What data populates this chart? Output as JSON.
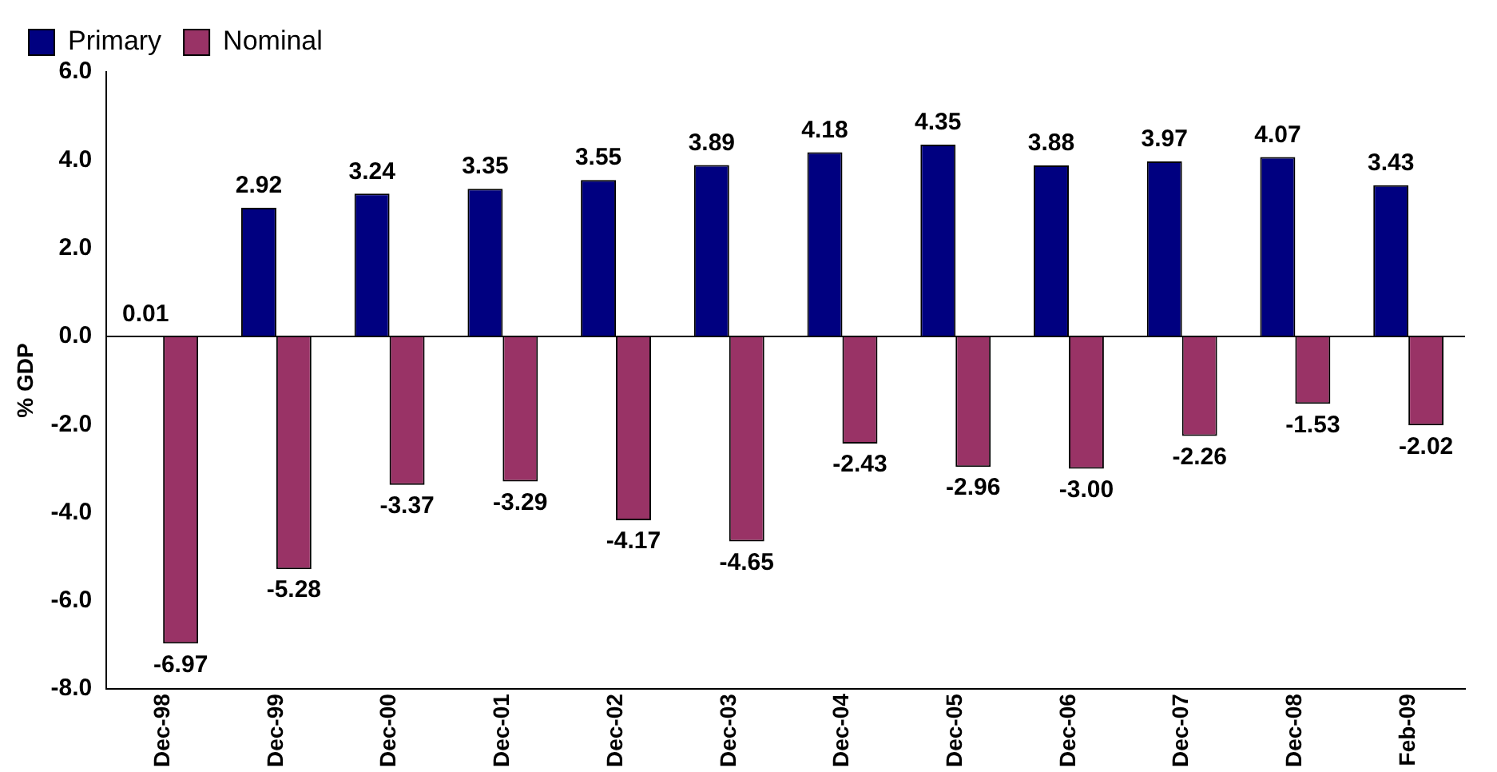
{
  "chart_data": {
    "type": "bar",
    "ylabel": "% GDP",
    "categories": [
      "Dec-98",
      "Dec-99",
      "Dec-00",
      "Dec-01",
      "Dec-02",
      "Dec-03",
      "Dec-04",
      "Dec-05",
      "Dec-06",
      "Dec-07",
      "Dec-08",
      "Feb-09"
    ],
    "series": [
      {
        "name": "Primary",
        "color": "#000080",
        "values": [
          0.01,
          2.92,
          3.24,
          3.35,
          3.55,
          3.89,
          4.18,
          4.35,
          3.88,
          3.97,
          4.07,
          3.43
        ],
        "value_labels": [
          "0.01",
          "2.92",
          "3.24",
          "3.35",
          "3.55",
          "3.89",
          "4.18",
          "4.35",
          "3.88",
          "3.97",
          "4.07",
          "3.43"
        ]
      },
      {
        "name": "Nominal",
        "color": "#993366",
        "values": [
          -6.97,
          -5.28,
          -3.37,
          -3.29,
          -4.17,
          -4.65,
          -2.43,
          -2.96,
          -3.0,
          -2.26,
          -1.53,
          -2.02
        ],
        "value_labels": [
          "-6.97",
          "-5.28",
          "-3.37",
          "-3.29",
          "-4.17",
          "-4.65",
          "-2.43",
          "-2.96",
          "-3.00",
          "-2.26",
          "-1.53",
          "-2.02"
        ]
      }
    ],
    "ylim": [
      -8,
      6
    ],
    "yticks": [
      {
        "value": -8,
        "label": "-8.0"
      },
      {
        "value": -6,
        "label": "-6.0"
      },
      {
        "value": -4,
        "label": "-4.0"
      },
      {
        "value": -2,
        "label": "-2.0"
      },
      {
        "value": 0,
        "label": "0.0"
      },
      {
        "value": 2,
        "label": "2.0"
      },
      {
        "value": 4,
        "label": "4.0"
      },
      {
        "value": 6,
        "label": "6.0"
      }
    ],
    "ref_lines": [
      {
        "axis": "y",
        "value": 0,
        "color": "#000000"
      }
    ],
    "grid": false,
    "legend": "top left"
  }
}
